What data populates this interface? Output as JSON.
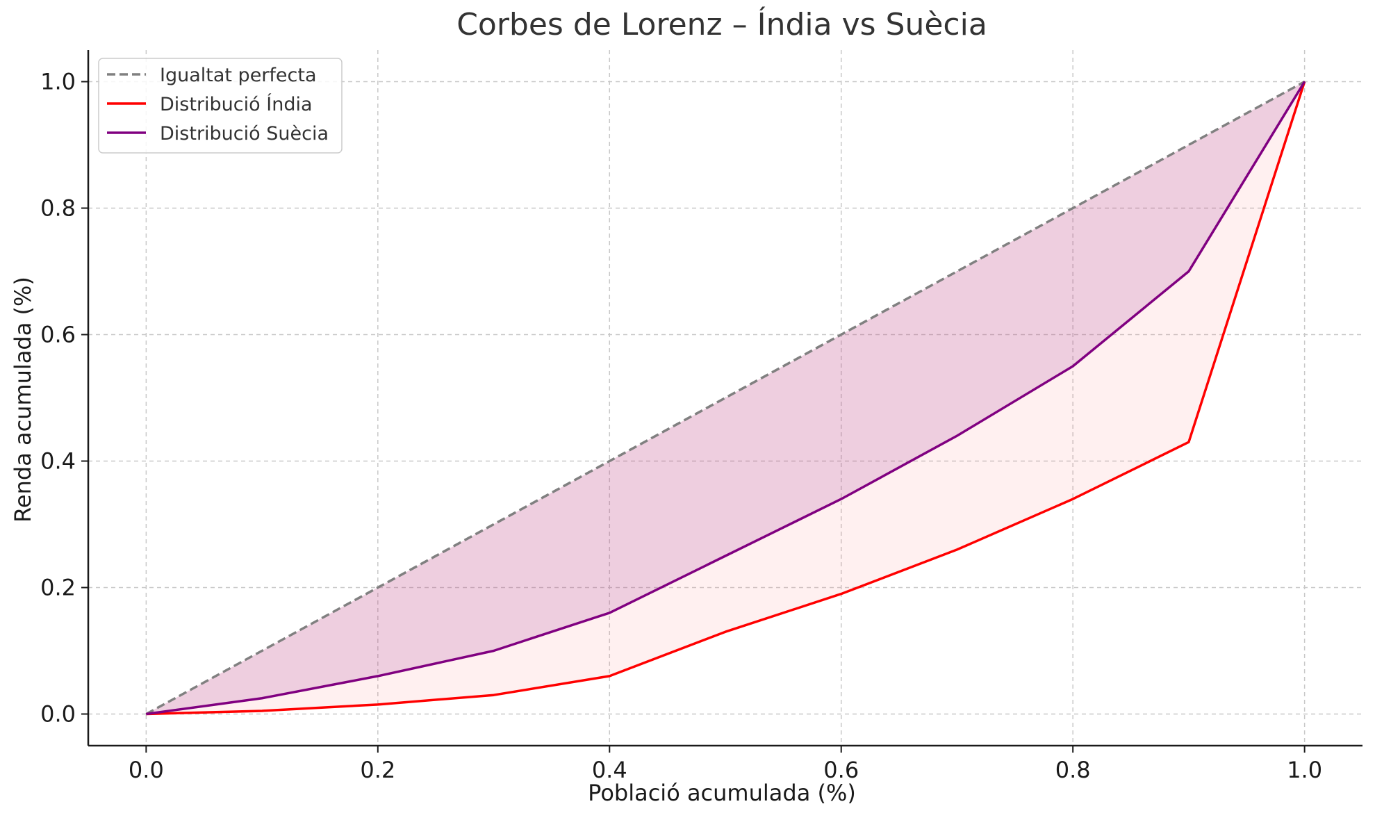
{
  "chart_data": {
    "type": "line",
    "title": "Corbes de Lorenz – Índia vs Suècia",
    "xlabel": "Població acumulada (%)",
    "ylabel": "Renda acumulada (%)",
    "xlim": [
      -0.05,
      1.05
    ],
    "ylim": [
      -0.05,
      1.05
    ],
    "xticks": [
      0.0,
      0.2,
      0.4,
      0.6,
      0.8,
      1.0
    ],
    "yticks": [
      0.0,
      0.2,
      0.4,
      0.6,
      0.8,
      1.0
    ],
    "xtick_labels": [
      "0.0",
      "0.2",
      "0.4",
      "0.6",
      "0.8",
      "1.0"
    ],
    "ytick_labels": [
      "0.0",
      "0.2",
      "0.4",
      "0.6",
      "0.8",
      "1.0"
    ],
    "grid": true,
    "legend_position": "top-left",
    "x": [
      0.0,
      0.1,
      0.2,
      0.3,
      0.4,
      0.5,
      0.6,
      0.7,
      0.8,
      0.9,
      1.0
    ],
    "series": [
      {
        "name": "Igualtat perfecta",
        "color": "#808080",
        "style": "dashed",
        "values": [
          0.0,
          0.1,
          0.2,
          0.3,
          0.4,
          0.5,
          0.6,
          0.7,
          0.8,
          0.9,
          1.0
        ]
      },
      {
        "name": "Distribució Índia",
        "color": "#ff0000",
        "style": "solid",
        "values": [
          0.0,
          0.005,
          0.015,
          0.03,
          0.06,
          0.13,
          0.19,
          0.26,
          0.34,
          0.43,
          1.0
        ]
      },
      {
        "name": "Distribució Suècia",
        "color": "#800080",
        "style": "solid",
        "values": [
          0.0,
          0.025,
          0.06,
          0.1,
          0.16,
          0.25,
          0.34,
          0.44,
          0.55,
          0.7,
          1.0
        ]
      }
    ],
    "fills": [
      {
        "between": [
          "Igualtat perfecta",
          "Distribució Suècia"
        ],
        "color": "#800080",
        "opacity": 0.15
      },
      {
        "between": [
          "Igualtat perfecta",
          "Distribució Índia"
        ],
        "color": "#ff8080",
        "opacity": 0.12
      }
    ]
  }
}
